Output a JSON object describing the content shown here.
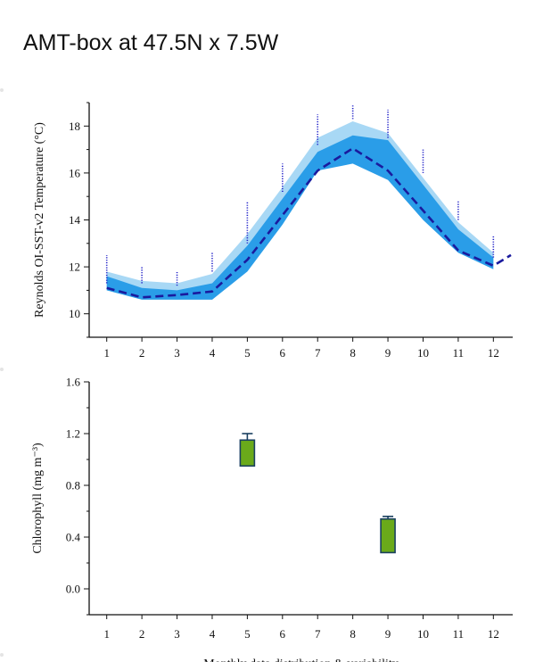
{
  "page": {
    "title": "AMT-box at 47.5N x 7.5W"
  },
  "chart_data": [
    {
      "type": "area",
      "ylabel": "Reynolds OI-SST-v2 Temperature (°C)",
      "xlabel": "",
      "x": [
        1,
        2,
        3,
        4,
        5,
        6,
        7,
        8,
        9,
        10,
        11,
        12
      ],
      "xlim": [
        0.5,
        12.55
      ],
      "ylim": [
        9,
        19
      ],
      "yticks": [
        10,
        12,
        14,
        16,
        18
      ],
      "grid": false,
      "colors": {
        "outer_band": "#a8d8f5",
        "inner_band": "#2a9de8",
        "mean_line": "#1a1a9e",
        "observations": "#2020c8"
      },
      "outer_band": {
        "lower": [
          11.0,
          10.7,
          10.6,
          10.7,
          12.0,
          14.0,
          16.3,
          16.5,
          15.8,
          14.0,
          12.6,
          12.0
        ],
        "upper": [
          11.8,
          11.4,
          11.3,
          11.7,
          13.4,
          15.4,
          17.5,
          18.2,
          17.7,
          15.8,
          13.9,
          12.6
        ]
      },
      "inner_band": {
        "lower": [
          11.0,
          10.6,
          10.6,
          10.6,
          11.8,
          13.8,
          16.1,
          16.4,
          15.7,
          14.0,
          12.6,
          11.9
        ],
        "upper": [
          11.6,
          11.1,
          11.0,
          11.3,
          12.9,
          14.9,
          16.9,
          17.6,
          17.4,
          15.5,
          13.6,
          12.4
        ]
      },
      "series": [
        {
          "type": "line",
          "style": "dashed",
          "x": [
            1,
            2,
            3,
            4,
            5,
            6,
            7,
            8,
            9,
            10,
            11,
            12,
            12.5
          ],
          "values": [
            11.1,
            10.7,
            10.8,
            10.95,
            12.3,
            14.2,
            16.1,
            17.05,
            16.1,
            14.4,
            12.7,
            12.05,
            12.5
          ]
        },
        {
          "type": "scatter",
          "x": [
            1,
            2,
            3,
            4,
            5,
            6,
            7,
            8,
            9,
            10,
            11,
            12
          ],
          "low": [
            11.3,
            11.3,
            11.2,
            11.8,
            13.0,
            15.2,
            17.2,
            18.3,
            17.5,
            16.0,
            14.0,
            12.4
          ],
          "high": [
            12.5,
            12.0,
            11.8,
            12.6,
            14.8,
            16.4,
            18.5,
            18.9,
            18.7,
            17.0,
            14.8,
            13.3
          ]
        }
      ]
    },
    {
      "type": "bar",
      "ylabel": "Chlorophyll (mg m⁻³)",
      "xlabel": "Monthly data distribution & variability",
      "x": [
        1,
        2,
        3,
        4,
        5,
        6,
        7,
        8,
        9,
        10,
        11,
        12
      ],
      "xlim": [
        0.5,
        12.55
      ],
      "ylim": [
        -0.2,
        1.6
      ],
      "yticks": [
        "0.0",
        "0.4",
        "0.8",
        "1.2",
        "1.6"
      ],
      "grid": false,
      "colors": {
        "box_fill": "#6aaa1a",
        "box_stroke": "#1a4060"
      },
      "boxes": [
        {
          "month": 5,
          "q1": 0.95,
          "q3": 1.15,
          "whisker_high": 1.2
        },
        {
          "month": 9,
          "q1": 0.28,
          "q3": 0.54,
          "whisker_high": 0.56
        }
      ]
    }
  ]
}
